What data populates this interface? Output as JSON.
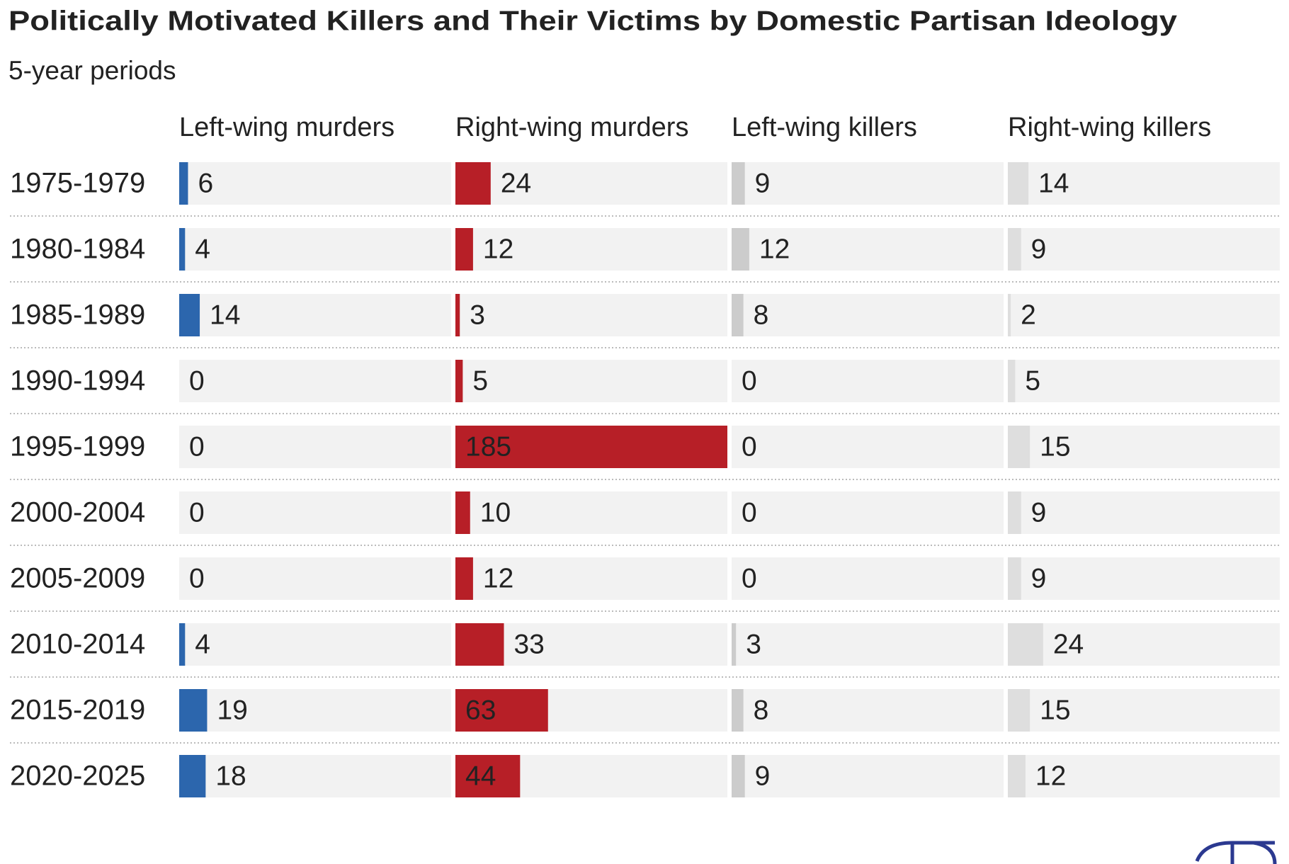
{
  "chart_data": {
    "type": "bar",
    "title": "Politically Motivated Killers and Their Victims by Domestic Partisan Ideology",
    "subtitle": "5-year periods",
    "categories": [
      "1975-1979",
      "1980-1984",
      "1985-1989",
      "1990-1994",
      "1995-1999",
      "2000-2004",
      "2005-2009",
      "2010-2014",
      "2015-2019",
      "2020-2025"
    ],
    "series": [
      {
        "name": "Left-wing murders",
        "color": "#2c66ad",
        "values": [
          6,
          4,
          14,
          0,
          0,
          0,
          0,
          4,
          19,
          18
        ]
      },
      {
        "name": "Right-wing murders",
        "color": "#b71f27",
        "values": [
          24,
          12,
          3,
          5,
          185,
          10,
          12,
          33,
          63,
          44
        ]
      },
      {
        "name": "Left-wing killers",
        "color": "#cccccc",
        "values": [
          9,
          12,
          8,
          0,
          0,
          0,
          0,
          3,
          8,
          9
        ]
      },
      {
        "name": "Right-wing killers",
        "color": "#dedede",
        "values": [
          14,
          9,
          2,
          5,
          15,
          9,
          9,
          24,
          15,
          12
        ]
      }
    ],
    "xlim": [
      0,
      185
    ]
  }
}
